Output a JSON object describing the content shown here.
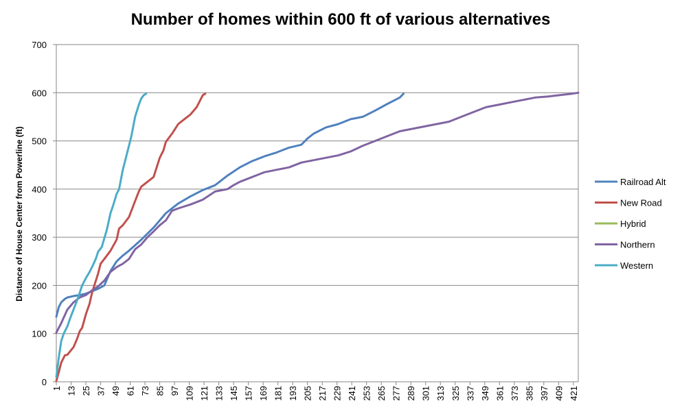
{
  "chart_data": {
    "type": "line",
    "title": "Number of homes within 600 ft of various alternatives",
    "xlabel": "",
    "ylabel": "Distance of House Center from Powerline (ft)",
    "xlim": [
      1,
      425
    ],
    "ylim": [
      0,
      700
    ],
    "y_ticks": [
      0,
      100,
      200,
      300,
      400,
      500,
      600,
      700
    ],
    "x_ticks": [
      1,
      13,
      25,
      37,
      49,
      61,
      73,
      85,
      97,
      109,
      121,
      133,
      145,
      157,
      169,
      181,
      193,
      205,
      217,
      229,
      241,
      253,
      265,
      277,
      289,
      301,
      313,
      325,
      337,
      349,
      361,
      373,
      385,
      397,
      409,
      421
    ],
    "grid": "horizontal",
    "legend_position": "right",
    "series": [
      {
        "name": "Railroad Alt",
        "color": "#4F81BD",
        "x": [
          1,
          3,
          5,
          8,
          10,
          15,
          20,
          25,
          30,
          35,
          40,
          45,
          50,
          55,
          60,
          70,
          80,
          90,
          100,
          110,
          120,
          130,
          140,
          150,
          160,
          170,
          180,
          190,
          200,
          205,
          210,
          220,
          230,
          240,
          250,
          260,
          270,
          280,
          283
        ],
        "y": [
          135,
          155,
          165,
          172,
          175,
          178,
          180,
          183,
          188,
          193,
          200,
          230,
          250,
          262,
          272,
          295,
          320,
          350,
          370,
          385,
          398,
          408,
          428,
          445,
          458,
          468,
          476,
          486,
          492,
          505,
          515,
          528,
          535,
          545,
          550,
          563,
          577,
          590,
          598
        ]
      },
      {
        "name": "New Road",
        "color": "#C0504D",
        "x": [
          1,
          3,
          5,
          8,
          10,
          15,
          18,
          20,
          22,
          25,
          28,
          30,
          35,
          37,
          40,
          45,
          50,
          52,
          55,
          60,
          65,
          68,
          70,
          75,
          80,
          85,
          88,
          90,
          95,
          100,
          105,
          110,
          115,
          118,
          120,
          122
        ],
        "y": [
          2,
          20,
          40,
          55,
          56,
          72,
          90,
          105,
          112,
          140,
          162,
          185,
          225,
          245,
          255,
          272,
          295,
          318,
          325,
          342,
          375,
          395,
          405,
          415,
          425,
          465,
          480,
          498,
          515,
          535,
          545,
          555,
          570,
          585,
          595,
          598
        ]
      },
      {
        "name": "Hybrid",
        "color": "#9BBB59",
        "x": [],
        "y": []
      },
      {
        "name": "Northern",
        "color": "#8064A2",
        "x": [
          1,
          5,
          10,
          15,
          20,
          25,
          30,
          35,
          40,
          45,
          50,
          55,
          60,
          65,
          70,
          75,
          80,
          85,
          90,
          95,
          100,
          110,
          120,
          130,
          140,
          145,
          150,
          160,
          170,
          180,
          190,
          200,
          210,
          220,
          230,
          240,
          250,
          260,
          270,
          280,
          290,
          300,
          310,
          320,
          330,
          340,
          350,
          360,
          370,
          380,
          390,
          400,
          410,
          420,
          425
        ],
        "y": [
          102,
          122,
          150,
          165,
          175,
          180,
          190,
          198,
          210,
          228,
          238,
          245,
          255,
          275,
          285,
          300,
          312,
          325,
          335,
          355,
          360,
          368,
          378,
          395,
          400,
          408,
          415,
          425,
          435,
          440,
          445,
          455,
          460,
          465,
          470,
          478,
          490,
          500,
          510,
          520,
          525,
          530,
          535,
          540,
          550,
          560,
          570,
          575,
          580,
          585,
          590,
          592,
          595,
          598,
          600
        ]
      },
      {
        "name": "Western",
        "color": "#4BACC6",
        "x": [
          1,
          3,
          5,
          7,
          10,
          12,
          15,
          18,
          20,
          22,
          25,
          28,
          30,
          33,
          35,
          38,
          40,
          42,
          45,
          47,
          50,
          52,
          55,
          57,
          60,
          62,
          65,
          68,
          70,
          72,
          74
        ],
        "y": [
          10,
          50,
          85,
          100,
          115,
          130,
          150,
          170,
          185,
          200,
          215,
          228,
          238,
          255,
          270,
          280,
          298,
          315,
          350,
          365,
          390,
          400,
          440,
          460,
          490,
          510,
          550,
          575,
          588,
          595,
          598
        ]
      }
    ]
  }
}
